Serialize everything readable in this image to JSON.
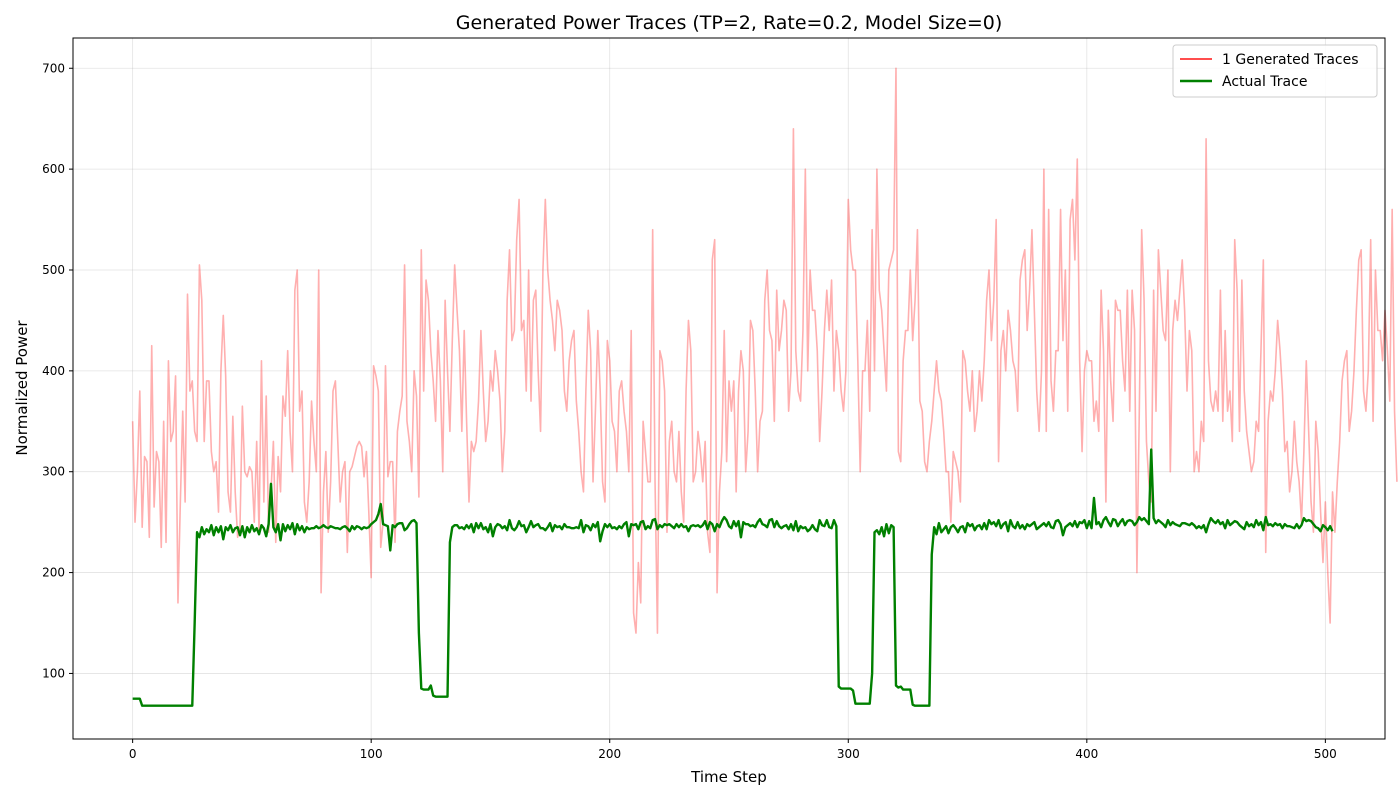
{
  "chart_data": {
    "type": "line",
    "title": "Generated Power Traces (TP=2, Rate=0.2, Model Size=0)",
    "xlabel": "Time Step",
    "ylabel": "Normalized Power",
    "xlim": [
      -25,
      525
    ],
    "ylim": [
      35,
      730
    ],
    "xticks": [
      0,
      100,
      200,
      300,
      400,
      500
    ],
    "yticks": [
      100,
      200,
      300,
      400,
      500,
      600,
      700
    ],
    "grid": true,
    "legend_position": "top-right",
    "series": [
      {
        "name": "1 Generated Traces",
        "color": "#ff4d4d",
        "opacity": 0.45,
        "x_step": 1,
        "values": [
          350,
          250,
          300,
          380,
          245,
          315,
          310,
          235,
          425,
          265,
          320,
          310,
          225,
          350,
          230,
          410,
          330,
          340,
          395,
          170,
          270,
          360,
          270,
          476,
          380,
          390,
          340,
          330,
          505,
          470,
          330,
          390,
          390,
          320,
          300,
          310,
          260,
          400,
          455,
          395,
          280,
          260,
          355,
          280,
          235,
          245,
          365,
          300,
          295,
          305,
          300,
          250,
          330,
          240,
          410,
          270,
          375,
          240,
          280,
          330,
          230,
          315,
          280,
          375,
          355,
          420,
          340,
          300,
          480,
          500,
          360,
          380,
          270,
          250,
          290,
          370,
          330,
          300,
          500,
          180,
          280,
          320,
          240,
          290,
          380,
          390,
          330,
          270,
          300,
          310,
          220,
          300,
          305,
          315,
          325,
          330,
          325,
          295,
          320,
          260,
          195,
          405,
          395,
          380,
          225,
          250,
          405,
          295,
          310,
          310,
          230,
          340,
          360,
          375,
          505,
          350,
          330,
          300,
          400,
          375,
          275,
          520,
          380,
          490,
          470,
          420,
          390,
          350,
          440,
          390,
          300,
          470,
          400,
          340,
          430,
          505,
          460,
          420,
          340,
          440,
          350,
          270,
          330,
          320,
          330,
          370,
          440,
          380,
          330,
          350,
          400,
          380,
          420,
          400,
          370,
          300,
          340,
          470,
          520,
          430,
          440,
          530,
          570,
          440,
          450,
          380,
          500,
          370,
          470,
          480,
          400,
          340,
          500,
          570,
          500,
          470,
          450,
          420,
          470,
          460,
          440,
          380,
          360,
          410,
          430,
          440,
          370,
          340,
          300,
          280,
          380,
          460,
          420,
          290,
          360,
          440,
          380,
          290,
          270,
          430,
          410,
          350,
          340,
          300,
          380,
          390,
          360,
          340,
          300,
          440,
          160,
          140,
          210,
          170,
          350,
          320,
          290,
          290,
          540,
          290,
          140,
          420,
          410,
          380,
          240,
          330,
          350,
          300,
          290,
          340,
          280,
          250,
          380,
          450,
          420,
          290,
          300,
          340,
          320,
          290,
          330,
          240,
          220,
          510,
          530,
          180,
          280,
          320,
          440,
          310,
          390,
          360,
          390,
          280,
          380,
          420,
          400,
          300,
          340,
          450,
          440,
          380,
          300,
          350,
          360,
          470,
          500,
          440,
          430,
          350,
          480,
          420,
          440,
          470,
          460,
          360,
          400,
          640,
          420,
          380,
          370,
          440,
          600,
          400,
          500,
          460,
          460,
          420,
          330,
          380,
          440,
          480,
          440,
          490,
          380,
          440,
          420,
          380,
          360,
          400,
          570,
          520,
          500,
          500,
          410,
          300,
          400,
          400,
          450,
          360,
          540,
          400,
          600,
          480,
          460,
          420,
          380,
          500,
          510,
          520,
          700,
          320,
          310,
          410,
          440,
          440,
          500,
          430,
          470,
          540,
          370,
          360,
          310,
          300,
          330,
          350,
          380,
          410,
          380,
          370,
          340,
          300,
          300,
          250,
          320,
          310,
          300,
          270,
          420,
          410,
          380,
          360,
          400,
          340,
          360,
          400,
          370,
          410,
          470,
          500,
          430,
          470,
          550,
          310,
          420,
          440,
          400,
          460,
          440,
          410,
          400,
          360,
          490,
          510,
          520,
          440,
          480,
          540,
          460,
          380,
          340,
          400,
          600,
          340,
          560,
          390,
          360,
          420,
          420,
          560,
          430,
          500,
          360,
          550,
          570,
          510,
          610,
          410,
          320,
          400,
          420,
          410,
          410,
          350,
          370,
          340,
          480,
          420,
          270,
          460,
          390,
          350,
          470,
          460,
          460,
          410,
          380,
          480,
          360,
          480,
          440,
          200,
          360,
          540,
          470,
          330,
          290,
          270,
          480,
          360,
          520,
          480,
          440,
          430,
          500,
          300,
          440,
          470,
          450,
          480,
          510,
          460,
          380,
          440,
          420,
          300,
          320,
          300,
          350,
          330,
          630,
          410,
          370,
          360,
          380,
          360,
          480,
          350,
          440,
          360,
          380,
          330,
          530,
          480,
          340,
          490,
          380,
          340,
          320,
          300,
          310,
          350,
          340,
          420,
          510,
          220,
          350,
          380,
          370,
          400,
          450,
          420,
          380,
          320,
          330,
          280,
          300,
          350,
          310,
          290,
          250,
          320,
          410,
          340,
          270,
          240,
          350,
          320,
          260,
          210,
          270,
          200,
          150,
          280,
          240,
          290,
          330,
          390,
          410,
          420,
          340,
          360,
          400,
          460,
          510,
          520,
          380,
          360,
          400,
          530,
          350,
          500,
          440,
          440,
          410,
          460,
          420,
          370,
          560,
          360,
          290
        ]
      },
      {
        "name": "Actual Trace",
        "color": "#008000",
        "opacity": 1,
        "x_step": 1,
        "values": [
          75,
          75,
          75,
          75,
          68,
          68,
          68,
          68,
          68,
          68,
          68,
          68,
          68,
          68,
          68,
          68,
          68,
          68,
          68,
          68,
          68,
          68,
          68,
          68,
          68,
          68,
          150,
          240,
          235,
          245,
          238,
          243,
          240,
          247,
          237,
          245,
          240,
          246,
          233,
          245,
          242,
          247,
          240,
          244,
          245,
          237,
          246,
          235,
          245,
          240,
          247,
          241,
          244,
          238,
          247,
          244,
          236,
          248,
          288,
          245,
          240,
          248,
          232,
          248,
          241,
          247,
          243,
          249,
          238,
          248,
          242,
          246,
          240,
          245,
          243,
          244,
          244,
          246,
          244,
          245,
          247,
          245,
          244,
          246,
          245,
          244,
          244,
          243,
          245,
          246,
          244,
          241,
          246,
          243,
          246,
          245,
          243,
          245,
          244,
          245,
          248,
          250,
          252,
          258,
          268,
          248,
          247,
          246,
          222,
          247,
          245,
          248,
          249,
          249,
          242,
          244,
          248,
          251,
          252,
          249,
          140,
          85,
          84,
          84,
          84,
          88,
          78,
          77,
          77,
          77,
          77,
          77,
          77,
          230,
          245,
          247,
          247,
          244,
          245,
          243,
          247,
          244,
          248,
          240,
          249,
          244,
          249,
          243,
          245,
          240,
          248,
          236,
          245,
          248,
          247,
          244,
          246,
          242,
          252,
          244,
          242,
          245,
          251,
          246,
          247,
          240,
          245,
          251,
          245,
          247,
          248,
          244,
          244,
          242,
          245,
          249,
          241,
          247,
          245,
          246,
          243,
          248,
          245,
          245,
          244,
          244,
          245,
          244,
          252,
          240,
          247,
          246,
          242,
          248,
          245,
          250,
          231,
          241,
          248,
          245,
          248,
          244,
          245,
          243,
          246,
          244,
          248,
          250,
          236,
          248,
          247,
          248,
          243,
          250,
          251,
          243,
          246,
          244,
          252,
          253,
          243,
          247,
          245,
          248,
          247,
          248,
          246,
          244,
          248,
          245,
          248,
          245,
          246,
          241,
          246,
          247,
          246,
          247,
          245,
          247,
          251,
          243,
          250,
          248,
          241,
          248,
          245,
          251,
          255,
          252,
          246,
          244,
          251,
          246,
          251,
          235,
          250,
          248,
          248,
          246,
          247,
          245,
          250,
          253,
          248,
          247,
          245,
          252,
          253,
          245,
          251,
          246,
          244,
          246,
          247,
          243,
          248,
          242,
          251,
          241,
          246,
          244,
          245,
          241,
          243,
          247,
          243,
          241,
          252,
          247,
          246,
          252,
          245,
          244,
          252,
          246,
          87,
          85,
          85,
          85,
          85,
          85,
          83,
          70,
          70,
          70,
          70,
          70,
          70,
          70,
          100,
          240,
          242,
          238,
          245,
          236,
          248,
          239,
          247,
          245,
          88,
          86,
          87,
          84,
          84,
          84,
          84,
          69,
          68,
          68,
          68,
          68,
          68,
          68,
          68,
          218,
          245,
          238,
          249,
          240,
          243,
          246,
          239,
          245,
          247,
          244,
          240,
          245,
          246,
          240,
          249,
          246,
          248,
          242,
          246,
          247,
          243,
          249,
          243,
          252,
          248,
          250,
          246,
          252,
          244,
          248,
          250,
          241,
          252,
          246,
          244,
          250,
          244,
          247,
          243,
          248,
          246,
          248,
          250,
          243,
          245,
          247,
          249,
          246,
          250,
          245,
          244,
          251,
          252,
          248,
          237,
          245,
          247,
          249,
          246,
          251,
          245,
          250,
          249,
          252,
          244,
          251,
          244,
          274,
          248,
          250,
          245,
          252,
          255,
          250,
          246,
          253,
          252,
          246,
          250,
          253,
          247,
          251,
          252,
          251,
          247,
          250,
          255,
          252,
          254,
          251,
          248,
          322,
          254,
          249,
          252,
          250,
          248,
          245,
          252,
          247,
          250,
          248,
          247,
          246,
          249,
          249,
          248,
          247,
          249,
          247,
          244,
          246,
          244,
          247,
          240,
          248,
          254,
          251,
          249,
          252,
          248,
          250,
          244,
          252,
          247,
          249,
          251,
          250,
          247,
          245,
          243,
          250,
          246,
          248,
          245,
          252,
          247,
          250,
          242,
          255,
          247,
          248,
          246,
          249,
          247,
          248,
          244,
          248,
          246,
          246,
          245,
          244,
          248,
          244,
          247,
          254,
          251,
          252,
          251,
          248,
          245,
          244,
          241,
          247,
          245,
          242,
          246,
          241
        ]
      }
    ]
  }
}
